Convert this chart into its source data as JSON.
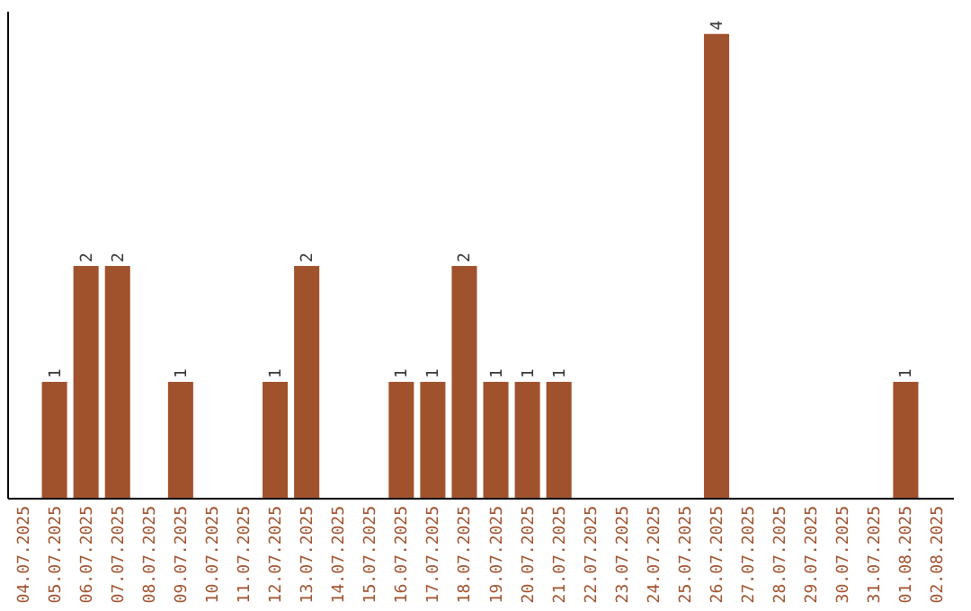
{
  "chart_data": {
    "type": "bar",
    "categories": [
      "04.07.2025",
      "05.07.2025",
      "06.07.2025",
      "07.07.2025",
      "08.07.2025",
      "09.07.2025",
      "10.07.2025",
      "11.07.2025",
      "12.07.2025",
      "13.07.2025",
      "14.07.2025",
      "15.07.2025",
      "16.07.2025",
      "17.07.2025",
      "18.07.2025",
      "19.07.2025",
      "20.07.2025",
      "21.07.2025",
      "22.07.2025",
      "23.07.2025",
      "24.07.2025",
      "25.07.2025",
      "26.07.2025",
      "27.07.2025",
      "28.07.2025",
      "29.07.2025",
      "30.07.2025",
      "31.07.2025",
      "01.08.2025",
      "02.08.2025"
    ],
    "values": [
      0,
      1,
      2,
      2,
      0,
      1,
      0,
      0,
      1,
      2,
      0,
      0,
      1,
      1,
      2,
      1,
      1,
      1,
      0,
      0,
      0,
      0,
      4,
      0,
      0,
      0,
      0,
      0,
      1,
      0
    ],
    "value_labels": [
      null,
      "1",
      "2",
      "2",
      null,
      "1",
      null,
      null,
      "1",
      "2",
      null,
      null,
      "1",
      "1",
      "2",
      "1",
      "1",
      "1",
      null,
      null,
      null,
      null,
      "4",
      null,
      null,
      null,
      null,
      null,
      "1",
      null
    ],
    "color": "#a0522d",
    "ylim": [
      0,
      4.2
    ],
    "tick_labels": "x"
  }
}
